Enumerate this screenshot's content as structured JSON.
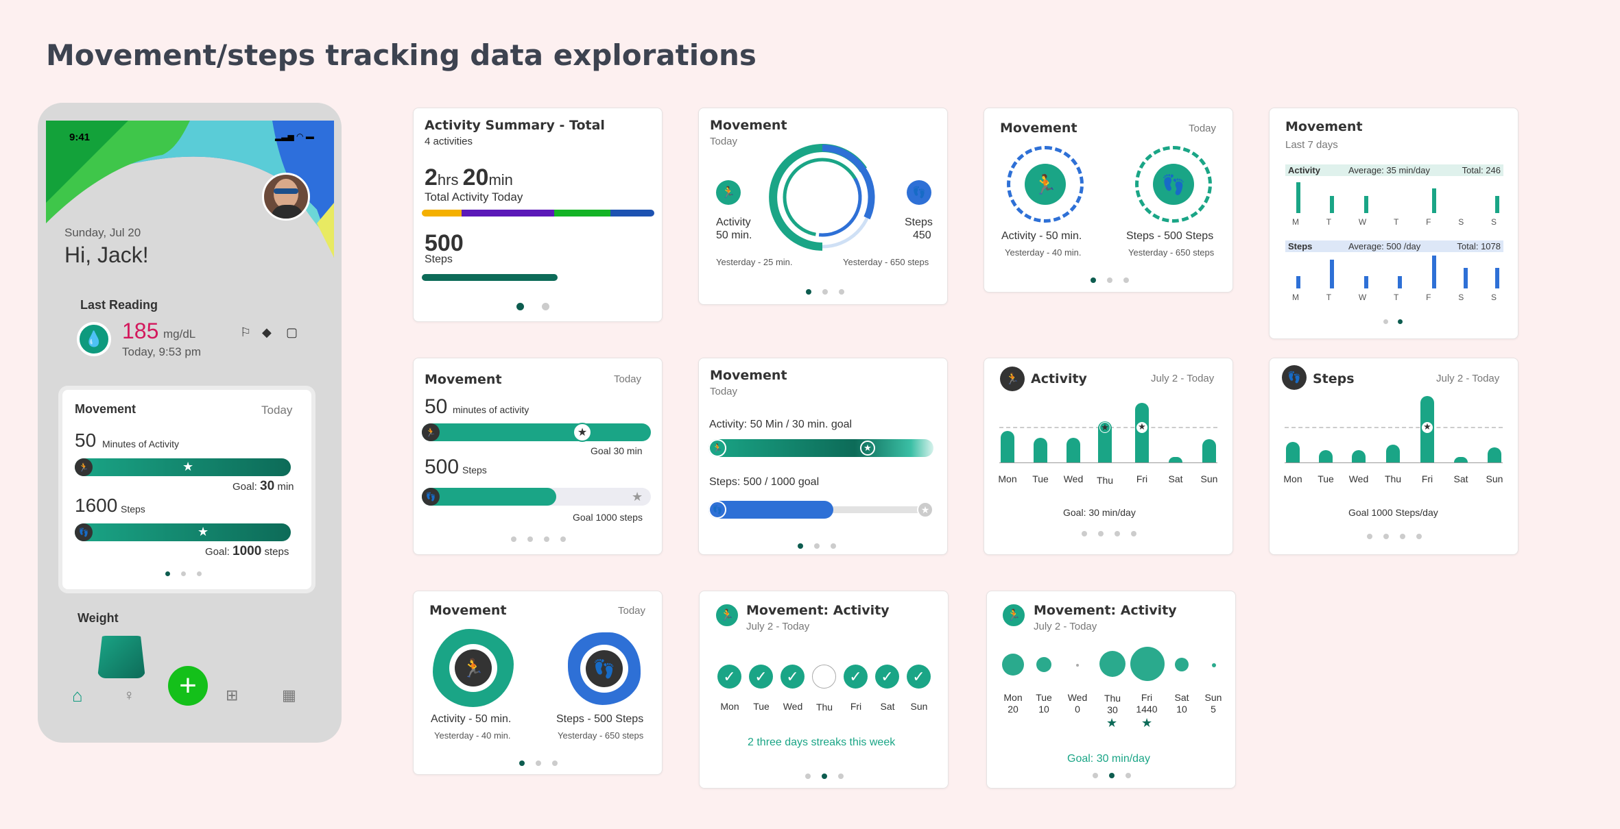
{
  "page_title": "Movement/steps tracking data explorations",
  "phone": {
    "time": "9:41",
    "date": "Sunday, Jul 20",
    "greeting": "Hi, Jack!",
    "last_reading_title": "Last Reading",
    "reading_value": "185",
    "reading_unit": "mg/dL",
    "reading_time": "Today, 9:53 pm",
    "movement": {
      "title": "Movement",
      "period": "Today",
      "minutes": "50",
      "minutes_label": "Minutes of Activity",
      "goal_label": "Goal:",
      "goal_min": "30",
      "goal_min_unit": "min",
      "steps": "1600",
      "steps_label": "Steps",
      "goal_steps": "1000",
      "goal_steps_unit": "steps"
    },
    "weight_title": "Weight",
    "nav": [
      "home-icon",
      "bulb-icon",
      "add-icon",
      "basket-icon",
      "calendar-icon"
    ]
  },
  "c1": {
    "title": "Activity Summary - Total",
    "sub": "4 activities",
    "hrs": "2",
    "hrs_u": "hrs",
    "min": "20",
    "min_u": "min",
    "total": "Total Activity Today",
    "steps": "500",
    "steps_l": "Steps",
    "segment_colors": [
      "#f4b000",
      "#5b19b8",
      "#13b325",
      "#1d52b1"
    ]
  },
  "c2": {
    "title": "Movement",
    "sub": "Today",
    "act": "Activity",
    "act_v": "50 min.",
    "steps": "Steps",
    "steps_v": "450",
    "y1": "Yesterday - 25 min.",
    "y2": "Yesterday - 650 steps"
  },
  "c3": {
    "title": "Movement",
    "period": "Today",
    "a": "Activity - 50 min.",
    "ay": "Yesterday - 40 min.",
    "s": "Steps - 500 Steps",
    "sy": "Yesterday - 650 steps"
  },
  "c4": {
    "title": "Movement",
    "sub": "Last 7 days",
    "a_head": "Activity",
    "a_avg": "Average: 35 min/day",
    "a_tot": "Total: 246",
    "s_head": "Steps",
    "s_avg": "Average: 500 /day",
    "s_tot": "Total: 1078",
    "days": [
      "M",
      "T",
      "W",
      "T",
      "F",
      "S",
      "S"
    ]
  },
  "c5": {
    "title": "Movement",
    "period": "Today",
    "min": "50",
    "min_l": "minutes of activity",
    "goal1": "Goal 30 min",
    "steps": "500",
    "steps_l": "Steps",
    "goal2": "Goal 1000 steps"
  },
  "c6": {
    "title": "Movement",
    "sub": "Today",
    "a": "Activity: 50 Min / 30 min. goal",
    "s": "Steps: 500 / 1000 goal"
  },
  "c7": {
    "title": "Activity",
    "period": "July 2 - Today",
    "goal": "Goal: 30 min/day",
    "days": [
      "Mon",
      "Tue",
      "Wed",
      "Thu",
      "Fri",
      "Sat",
      "Sun"
    ]
  },
  "c8": {
    "title": "Steps",
    "period": "July 2 - Today",
    "goal": "Goal 1000 Steps/day",
    "days": [
      "Mon",
      "Tue",
      "Wed",
      "Thu",
      "Fri",
      "Sat",
      "Sun"
    ]
  },
  "c9": {
    "title": "Movement",
    "period": "Today",
    "a": "Activity - 50 min.",
    "ay": "Yesterday - 40 min.",
    "s": "Steps - 500 Steps",
    "sy": "Yesterday - 650 steps"
  },
  "c10": {
    "title": "Movement: Activity",
    "sub": "July 2 - Today",
    "days": [
      "Mon",
      "Tue",
      "Wed",
      "Thu",
      "Fri",
      "Sat",
      "Sun"
    ],
    "streak": "2 three days streaks this week"
  },
  "c11": {
    "title": "Movement: Activity",
    "sub": "July 2 - Today",
    "days": [
      "Mon",
      "Tue",
      "Wed",
      "Thu",
      "Fri",
      "Sat",
      "Sun"
    ],
    "vals": [
      "20",
      "10",
      "0",
      "30",
      "1440",
      "10",
      "5"
    ],
    "goal": "Goal: 30 min/day"
  }
}
